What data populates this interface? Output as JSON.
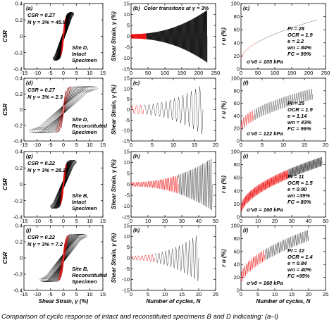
{
  "caption": "Comparison of cyclic response of intact and reconstituted specimens B and D indicating: (a–l)",
  "chart_data": [
    {
      "id": "a",
      "type": "line",
      "panel_label": "(a)",
      "col": 0,
      "row": 0,
      "kind": "hyst",
      "ylabel": "CSR",
      "xlabel": "",
      "xlim": [
        -15,
        15
      ],
      "ylim": [
        -0.4,
        0.4
      ],
      "xticks": [
        -15,
        -10,
        -5,
        0,
        5,
        10,
        15
      ],
      "yticks": [
        -0.4,
        -0.2,
        0,
        0.2,
        0.4
      ],
      "annotations": [
        "CSR = 0.27",
        "N γ = 3% = 45.8"
      ],
      "site_text": [
        "Site D,",
        "Intact",
        "Specimen"
      ],
      "series": [
        {
          "color": "black",
          "cycles": 46,
          "strain_max": 4
        },
        {
          "color": "red",
          "cycles": 10,
          "strain_max": 1
        }
      ]
    },
    {
      "id": "b",
      "type": "line",
      "panel_label": "(b)",
      "col": 1,
      "row": 0,
      "kind": "strain",
      "ylabel": "Shear Strain, γ (%)",
      "xlabel": "",
      "xlim": [
        0,
        250
      ],
      "ylim": [
        -15,
        15
      ],
      "xticks": [
        0,
        50,
        100,
        150,
        200,
        250
      ],
      "yticks": [
        -15,
        -10,
        -5,
        0,
        5,
        10,
        15
      ],
      "title": "Color transitons at γ = 3%",
      "n_total": 225,
      "amp_start": 1,
      "amp_end": 12,
      "red_until": 45
    },
    {
      "id": "c",
      "type": "line",
      "panel_label": "(c)",
      "col": 2,
      "row": 0,
      "kind": "pore",
      "ylabel": "r u (%)",
      "xlabel": "",
      "xlim": [
        0,
        250
      ],
      "ylim": [
        0,
        100
      ],
      "xticks": [
        0,
        50,
        100,
        150,
        200,
        250
      ],
      "yticks": [
        0,
        20,
        40,
        60,
        80,
        100
      ],
      "annotations": [
        "PI = 28",
        "OCR = 1.9",
        "e = 2.2",
        "wn = 84%",
        "FC = 99%"
      ],
      "stress_note": "σ'v0 = 105 kPa",
      "n_total": 225,
      "ru_start": 15,
      "ru_end": 75,
      "band": 8,
      "red_until": 45
    },
    {
      "id": "d",
      "type": "line",
      "panel_label": "(d)",
      "col": 0,
      "row": 1,
      "kind": "hyst",
      "ylabel": "CSR",
      "xlabel": "",
      "xlim": [
        -15,
        15
      ],
      "ylim": [
        -0.4,
        0.4
      ],
      "xticks": [
        -15,
        -10,
        -5,
        0,
        5,
        10,
        15
      ],
      "yticks": [
        -0.4,
        -0.2,
        0,
        0.2,
        0.4
      ],
      "annotations": [
        "CSR = 0.27",
        "N γ = 3% = 2.3"
      ],
      "site_text": [
        "Site D,",
        "Reconstituted",
        "Specimen"
      ],
      "series": [
        {
          "color": "black",
          "cycles": 14,
          "strain_max": 13
        },
        {
          "color": "red",
          "cycles": 3,
          "strain_max": 3
        }
      ]
    },
    {
      "id": "e",
      "type": "line",
      "panel_label": "(e)",
      "col": 1,
      "row": 1,
      "kind": "strain",
      "ylabel": "Shear Strain, γ (%)",
      "xlabel": "",
      "xlim": [
        0,
        20
      ],
      "ylim": [
        -15,
        15
      ],
      "xticks": [
        0,
        5,
        10,
        15,
        20
      ],
      "yticks": [
        -15,
        -10,
        -5,
        0,
        5,
        10,
        15
      ],
      "n_total": 17,
      "amp_start": 2,
      "amp_end": 12,
      "red_until": 3
    },
    {
      "id": "f",
      "type": "line",
      "panel_label": "(f)",
      "col": 2,
      "row": 1,
      "kind": "pore",
      "ylabel": "r u (%)",
      "xlabel": "",
      "xlim": [
        0,
        20
      ],
      "ylim": [
        0,
        100
      ],
      "xticks": [
        0,
        5,
        10,
        15,
        20
      ],
      "yticks": [
        0,
        20,
        40,
        60,
        80,
        100
      ],
      "annotations": [
        "PI = 25",
        "OCR = 1.9",
        "e = 1.14",
        "wn = 43%",
        "FC = 96%"
      ],
      "stress_note": "σ'v0 = 122 kPa",
      "n_total": 17,
      "ru_start": 20,
      "ru_end": 75,
      "band": 10,
      "red_until": 3
    },
    {
      "id": "g",
      "type": "line",
      "panel_label": "(g)",
      "col": 0,
      "row": 2,
      "kind": "hyst",
      "ylabel": "CSR",
      "xlabel": "",
      "xlim": [
        -15,
        15
      ],
      "ylim": [
        -0.4,
        0.4
      ],
      "xticks": [
        -15,
        -10,
        -5,
        0,
        5,
        10,
        15
      ],
      "yticks": [
        -0.4,
        -0.2,
        0,
        0.2,
        0.4
      ],
      "annotations": [
        "CSR = 0.22",
        "N γ = 3% = 28.2"
      ],
      "site_text": [
        "Site B,",
        "Intact",
        "Specimen"
      ],
      "series": [
        {
          "color": "black",
          "cycles": 30,
          "strain_max": 5
        },
        {
          "color": "red",
          "cycles": 10,
          "strain_max": 1.2
        }
      ]
    },
    {
      "id": "h",
      "type": "line",
      "panel_label": "(h)",
      "col": 1,
      "row": 2,
      "kind": "strain",
      "ylabel": "Shear Strain, γ (%)",
      "xlabel": "",
      "xlim": [
        0,
        50
      ],
      "ylim": [
        -15,
        15
      ],
      "xticks": [
        0,
        10,
        20,
        30,
        40,
        50
      ],
      "yticks": [
        -15,
        -10,
        -5,
        0,
        5,
        10,
        15
      ],
      "n_total": 48,
      "amp_start": 1,
      "amp_end": 12,
      "red_until": 28
    },
    {
      "id": "i",
      "type": "line",
      "panel_label": "(i)",
      "col": 2,
      "row": 2,
      "kind": "pore",
      "ylabel": "r u (%)",
      "xlabel": "",
      "xlim": [
        0,
        50
      ],
      "ylim": [
        0,
        100
      ],
      "xticks": [
        0,
        10,
        20,
        30,
        40,
        50
      ],
      "yticks": [
        0,
        20,
        40,
        60,
        80,
        100
      ],
      "annotations": [
        "PI = 11",
        "OCR = 1.5",
        "e = 0.90",
        "wn =39%",
        "FC = 80%"
      ],
      "stress_note": "σ'v0 = 160 kPa",
      "n_total": 48,
      "ru_start": 10,
      "ru_end": 85,
      "band": 8,
      "red_until": 28
    },
    {
      "id": "j",
      "type": "line",
      "panel_label": "(j)",
      "col": 0,
      "row": 3,
      "kind": "hyst",
      "ylabel": "CSR",
      "xlabel": "Shear Strain, γ (%)",
      "xlim": [
        -15,
        15
      ],
      "ylim": [
        -0.4,
        0.4
      ],
      "xticks": [
        -15,
        -10,
        -5,
        0,
        5,
        10,
        15
      ],
      "yticks": [
        -0.4,
        -0.2,
        0,
        0.2,
        0.4
      ],
      "annotations": [
        "CSR = 0.22",
        "N γ = 3% = 7.2"
      ],
      "site_text": [
        "Site B,",
        "Reconstituted",
        "Specimen"
      ],
      "series": [
        {
          "color": "black",
          "cycles": 20,
          "strain_max": 9
        },
        {
          "color": "red",
          "cycles": 7,
          "strain_max": 2
        }
      ]
    },
    {
      "id": "k",
      "type": "line",
      "panel_label": "(k)",
      "col": 1,
      "row": 3,
      "kind": "strain",
      "ylabel": "Shear Strain, γ (%)",
      "xlabel": "Number of cycles, N",
      "xlim": [
        0,
        25
      ],
      "ylim": [
        -15,
        15
      ],
      "xticks": [
        0,
        5,
        10,
        15,
        20,
        25
      ],
      "yticks": [
        -15,
        -10,
        -5,
        0,
        5,
        10,
        15
      ],
      "n_total": 20,
      "amp_start": 1,
      "amp_end": 11,
      "red_until": 7
    },
    {
      "id": "l",
      "type": "line",
      "panel_label": "(l)",
      "col": 2,
      "row": 3,
      "kind": "pore",
      "ylabel": "r u (%)",
      "xlabel": "Number of cycles, N",
      "xlim": [
        0,
        25
      ],
      "ylim": [
        0,
        100
      ],
      "xticks": [
        0,
        5,
        10,
        15,
        20,
        25
      ],
      "yticks": [
        0,
        20,
        40,
        60,
        80,
        100
      ],
      "annotations": [
        "PI = 12",
        "OCR = 1.4",
        "e = 0.84",
        "wn = 40%",
        "FC =95%"
      ],
      "stress_note": "σ'v0 = 160 kPa",
      "n_total": 20,
      "ru_start": 15,
      "ru_end": 85,
      "band": 10,
      "red_until": 7
    }
  ]
}
